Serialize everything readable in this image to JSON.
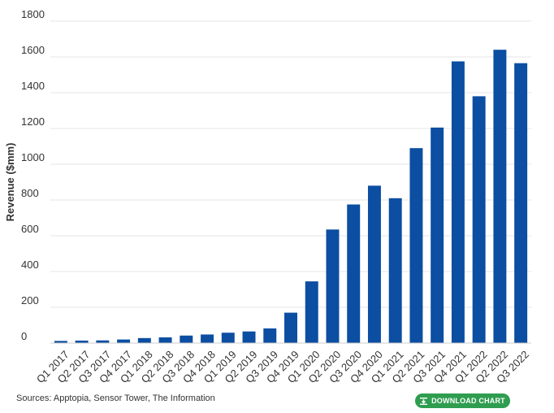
{
  "chart_data": {
    "type": "bar",
    "title": "",
    "xlabel": "",
    "ylabel": "Revenue ($mm)",
    "ylim": [
      0,
      1800
    ],
    "yticks": [
      0,
      200,
      400,
      600,
      800,
      1000,
      1200,
      1400,
      1600,
      1800
    ],
    "grid": true,
    "categories": [
      "Q1 2017",
      "Q2 2017",
      "Q3 2017",
      "Q4 2017",
      "Q1 2018",
      "Q2 2018",
      "Q3 2018",
      "Q4 2018",
      "Q1 2019",
      "Q2 2019",
      "Q3 2019",
      "Q4 2019",
      "Q1 2020",
      "Q2 2020",
      "Q3 2020",
      "Q4 2020",
      "Q1 2021",
      "Q2 2021",
      "Q3 2021",
      "Q4 2021",
      "Q1 2022",
      "Q2 2022",
      "Q3 2022"
    ],
    "values": [
      12,
      14,
      15,
      20,
      28,
      32,
      42,
      48,
      58,
      65,
      82,
      170,
      345,
      635,
      775,
      880,
      810,
      1090,
      1205,
      1575,
      1380,
      1640,
      1565
    ],
    "bar_color": "#0b4ea2",
    "grid_color": "#e6e6e6"
  },
  "footer": {
    "source": "Sources: Apptopia, Sensor Tower, The Information",
    "download_label": "DOWNLOAD CHART",
    "download_icon": "download-icon",
    "button_color": "#2e9d4f"
  }
}
